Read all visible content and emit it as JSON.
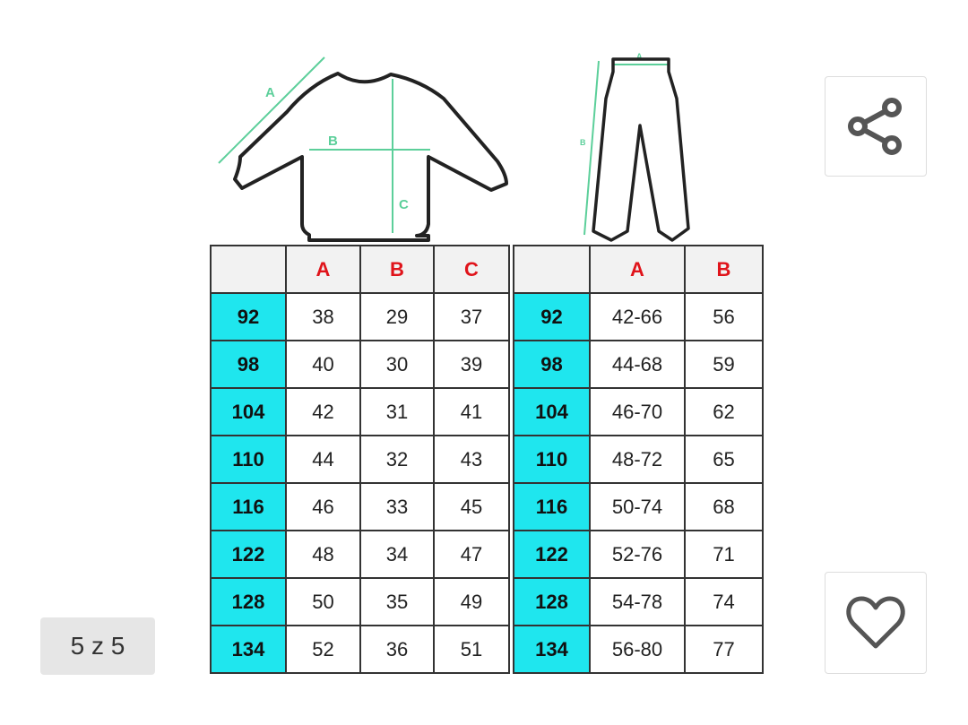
{
  "gallery": {
    "counter": "5 z 5",
    "share_icon": "share-icon",
    "favorite_icon": "heart-icon"
  },
  "diagram": {
    "top_labels": [
      "A",
      "B",
      "C"
    ],
    "pants_labels": [
      "A",
      "B"
    ],
    "accent": "#5ccf9a"
  },
  "top_table": {
    "headers": [
      "",
      "A",
      "B",
      "C"
    ],
    "rows": [
      [
        "92",
        "38",
        "29",
        "37"
      ],
      [
        "98",
        "40",
        "30",
        "39"
      ],
      [
        "104",
        "42",
        "31",
        "41"
      ],
      [
        "110",
        "44",
        "32",
        "43"
      ],
      [
        "116",
        "46",
        "33",
        "45"
      ],
      [
        "122",
        "48",
        "34",
        "47"
      ],
      [
        "128",
        "50",
        "35",
        "49"
      ],
      [
        "134",
        "52",
        "36",
        "51"
      ]
    ]
  },
  "pants_table": {
    "headers": [
      "",
      "A",
      "B"
    ],
    "rows": [
      [
        "92",
        "42-66",
        "56"
      ],
      [
        "98",
        "44-68",
        "59"
      ],
      [
        "104",
        "46-70",
        "62"
      ],
      [
        "110",
        "48-72",
        "65"
      ],
      [
        "116",
        "50-74",
        "68"
      ],
      [
        "122",
        "52-76",
        "71"
      ],
      [
        "128",
        "54-78",
        "74"
      ],
      [
        "134",
        "56-80",
        "77"
      ]
    ]
  },
  "colors": {
    "size_cell": "#1fe6ee",
    "header_text": "#e0141b"
  }
}
